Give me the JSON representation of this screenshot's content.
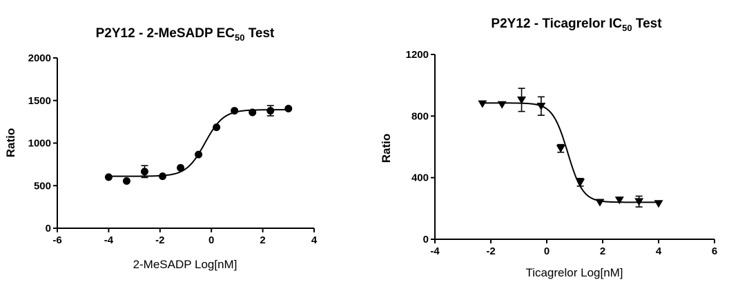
{
  "chart_data": [
    {
      "type": "scatter",
      "title_main": "P2Y12 - 2-MeSADP EC",
      "title_sub": "50",
      "title_end": " Test",
      "xlabel": "2-MeSADP Log[nM]",
      "ylabel": "Ratio",
      "xlim": [
        -6,
        4
      ],
      "ylim": [
        0,
        2000
      ],
      "xticks": [
        -6,
        -4,
        -2,
        0,
        2,
        4
      ],
      "yticks": [
        0,
        500,
        1000,
        1500,
        2000
      ],
      "marker": "circle",
      "grid": false,
      "points": [
        {
          "x": -4.0,
          "y": 600,
          "err": 0
        },
        {
          "x": -3.3,
          "y": 555,
          "err": 0
        },
        {
          "x": -2.6,
          "y": 665,
          "err": 70
        },
        {
          "x": -1.9,
          "y": 610,
          "err": 0
        },
        {
          "x": -1.2,
          "y": 710,
          "err": 0
        },
        {
          "x": -0.5,
          "y": 865,
          "err": 0
        },
        {
          "x": 0.2,
          "y": 1185,
          "err": 0
        },
        {
          "x": 0.9,
          "y": 1380,
          "err": 0
        },
        {
          "x": 1.6,
          "y": 1360,
          "err": 0
        },
        {
          "x": 2.3,
          "y": 1380,
          "err": 60
        },
        {
          "x": 3.0,
          "y": 1405,
          "err": 0
        }
      ],
      "fit": {
        "bottom": 610,
        "top": 1392,
        "logEC50": -0.25,
        "hill": 1.2
      }
    },
    {
      "type": "scatter",
      "title_main": "P2Y12 - Ticagrelor IC",
      "title_sub": "50",
      "title_end": " Test",
      "xlabel": "Ticagrelor Log[nM]",
      "ylabel": "Ratio",
      "xlim": [
        -4,
        6
      ],
      "ylim": [
        0,
        1200
      ],
      "xticks": [
        -4,
        -2,
        0,
        2,
        4,
        6
      ],
      "yticks": [
        0,
        400,
        800,
        1200
      ],
      "marker": "triangle-down",
      "grid": false,
      "points": [
        {
          "x": -2.3,
          "y": 880,
          "err": 0
        },
        {
          "x": -1.6,
          "y": 875,
          "err": 0
        },
        {
          "x": -0.9,
          "y": 905,
          "err": 75
        },
        {
          "x": -0.2,
          "y": 865,
          "err": 60
        },
        {
          "x": 0.5,
          "y": 590,
          "err": 25
        },
        {
          "x": 1.2,
          "y": 370,
          "err": 25
        },
        {
          "x": 1.9,
          "y": 240,
          "err": 0
        },
        {
          "x": 2.6,
          "y": 255,
          "err": 0
        },
        {
          "x": 3.3,
          "y": 245,
          "err": 35
        },
        {
          "x": 4.0,
          "y": 232,
          "err": 0
        }
      ],
      "fit": {
        "bottom": 240,
        "top": 885,
        "logEC50": 0.75,
        "hill": -1.6
      }
    }
  ]
}
